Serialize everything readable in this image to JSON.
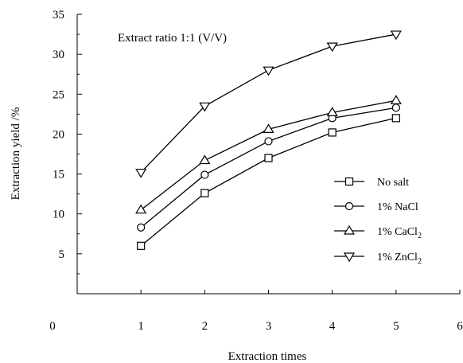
{
  "chart_data": {
    "type": "line",
    "annotation": "Extract ratio 1:1 (V/V)",
    "xlabel": "Extraction times",
    "ylabel": "Extraction yield /%",
    "x": [
      1,
      2,
      3,
      4,
      5
    ],
    "xlim": [
      0,
      6
    ],
    "ylim": [
      0,
      35
    ],
    "x_ticks": [
      "0",
      "1",
      "2",
      "3",
      "4",
      "5",
      "6"
    ],
    "y_ticks": [
      "5",
      "10",
      "15",
      "20",
      "25",
      "30",
      "35"
    ],
    "grid": false,
    "legend_position": "right",
    "series": [
      {
        "name": "No salt",
        "marker": "square",
        "values": [
          6.0,
          12.6,
          17.0,
          20.2,
          22.0
        ]
      },
      {
        "name": "1% NaCl",
        "marker": "circle",
        "values": [
          8.3,
          14.9,
          19.1,
          22.0,
          23.3
        ]
      },
      {
        "name": "1% CaCl",
        "name_sub": "2",
        "marker": "triangle-up",
        "values": [
          10.5,
          16.7,
          20.6,
          22.7,
          24.2
        ]
      },
      {
        "name": "1% ZnCl",
        "name_sub": "2",
        "marker": "triangle-down",
        "values": [
          15.2,
          23.5,
          28.0,
          31.0,
          32.5
        ]
      }
    ]
  }
}
